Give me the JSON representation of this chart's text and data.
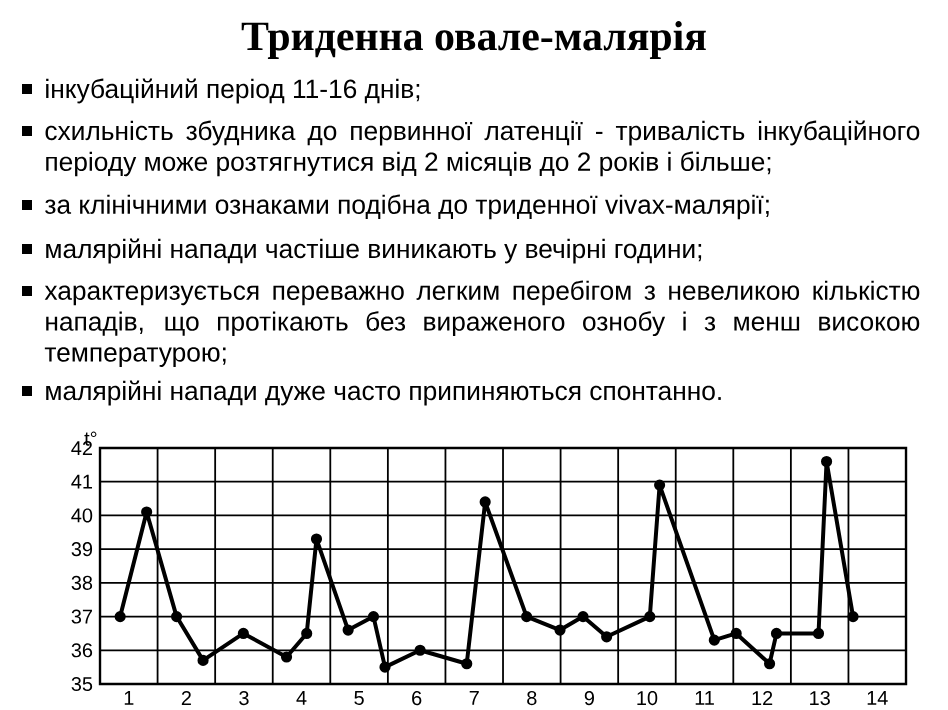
{
  "chart_data": {
    "type": "line",
    "title": "Триденна овале-малярія",
    "annotations": [
      "інкубаційний період 11-16 днів;",
      "схильність збудника до первинної латенції - тривалість інкубаційного періоду може розтягнутися від 2 місяців до 2 років і більше;",
      "за клінічними ознаками подібна до триденної vivax-малярії;",
      "малярійні напади частіше виникають у вечірні години;",
      "характеризується переважно легким перебігом з невеликою кількістю нападів, що протікають без вираженого ознобу і з менш високою температурою;",
      "малярійні напади дуже часто припиняються спонтанно."
    ],
    "ylabel": "t°",
    "x": [
      0.85,
      1.31,
      1.83,
      2.29,
      2.99,
      3.74,
      4.09,
      4.26,
      4.81,
      5.25,
      5.45,
      6.06,
      6.87,
      7.19,
      7.91,
      8.49,
      8.89,
      9.3,
      10.05,
      10.22,
      11.17,
      11.55,
      12.13,
      12.25,
      12.98,
      13.12,
      13.58
    ],
    "values": [
      37.0,
      40.1,
      37.0,
      35.7,
      36.5,
      35.8,
      36.5,
      39.3,
      36.6,
      37.0,
      35.5,
      36.0,
      35.6,
      40.4,
      37.0,
      36.6,
      37.0,
      36.4,
      37.0,
      40.9,
      36.3,
      36.5,
      35.6,
      36.5,
      36.5,
      41.6,
      37.0
    ],
    "color": "#000000",
    "xlim": [
      0.5,
      14.5
    ],
    "xticks": [
      {
        "value": 0.5,
        "label": null
      },
      1,
      {
        "value": 1.5,
        "label": null
      },
      2,
      {
        "value": 2.5,
        "label": null
      },
      3,
      {
        "value": 3.5,
        "label": null
      },
      4,
      {
        "value": 4.5,
        "label": null
      },
      5,
      {
        "value": 5.5,
        "label": null
      },
      6,
      {
        "value": 6.5,
        "label": null
      },
      7,
      {
        "value": 7.5,
        "label": null
      },
      8,
      {
        "value": 8.5,
        "label": null
      },
      9,
      {
        "value": 9.5,
        "label": null
      },
      10,
      {
        "value": 10.5,
        "label": null
      },
      11,
      {
        "value": 11.5,
        "label": null
      },
      12,
      {
        "value": 12.5,
        "label": null
      },
      13,
      {
        "value": 13.5,
        "label": null
      },
      14,
      {
        "value": 14.5,
        "label": null
      }
    ],
    "ylim": [
      35,
      42
    ],
    "yticks": [
      35,
      36,
      37,
      38,
      39,
      40,
      41,
      42
    ],
    "grid": true,
    "marker": "circle",
    "line_style": "solid"
  }
}
